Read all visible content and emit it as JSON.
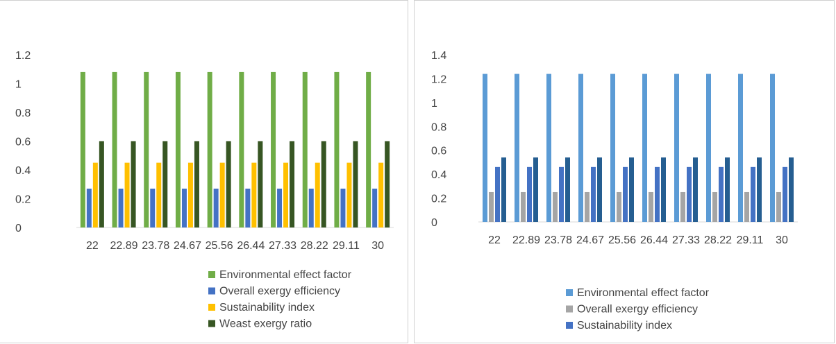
{
  "chart_data": [
    {
      "type": "bar",
      "categories": [
        "22",
        "22.89",
        "23.78",
        "24.67",
        "25.56",
        "26.44",
        "27.33",
        "28.22",
        "29.11",
        "30"
      ],
      "ylim": [
        0,
        1.2
      ],
      "yticks": [
        "0",
        "0.2",
        "0.4",
        "0.6",
        "0.8",
        "1",
        "1.2"
      ],
      "grid": false,
      "legend_position": "bottom",
      "series": [
        {
          "name": "Environmental effect factor",
          "color": "#70ad47",
          "values": [
            1.08,
            1.08,
            1.08,
            1.08,
            1.08,
            1.08,
            1.08,
            1.08,
            1.08,
            1.08
          ]
        },
        {
          "name": "Overall exergy efficiency",
          "color": "#4472c4",
          "values": [
            0.27,
            0.27,
            0.27,
            0.27,
            0.27,
            0.27,
            0.27,
            0.27,
            0.27,
            0.27
          ]
        },
        {
          "name": "Sustainability index",
          "color": "#ffc000",
          "values": [
            0.45,
            0.45,
            0.45,
            0.45,
            0.45,
            0.45,
            0.45,
            0.45,
            0.45,
            0.45
          ]
        },
        {
          "name": "Weast exergy ratio",
          "color": "#375623",
          "values": [
            0.6,
            0.6,
            0.6,
            0.6,
            0.6,
            0.6,
            0.6,
            0.6,
            0.6,
            0.6
          ]
        }
      ]
    },
    {
      "type": "bar",
      "categories": [
        "22",
        "22.89",
        "23.78",
        "24.67",
        "25.56",
        "26.44",
        "27.33",
        "28.22",
        "29.11",
        "30"
      ],
      "ylim": [
        0,
        1.4
      ],
      "yticks": [
        "0",
        "0.2",
        "0.4",
        "0.6",
        "0.8",
        "1",
        "1.2",
        "1.4"
      ],
      "grid": false,
      "legend_position": "bottom",
      "series": [
        {
          "name": "Environmental effect factor",
          "color": "#5b9bd5",
          "values": [
            1.24,
            1.24,
            1.24,
            1.24,
            1.24,
            1.24,
            1.24,
            1.24,
            1.24,
            1.24
          ]
        },
        {
          "name": "Overall exergy efficiency",
          "color": "#a5a5a5",
          "values": [
            0.25,
            0.25,
            0.25,
            0.25,
            0.25,
            0.25,
            0.25,
            0.25,
            0.25,
            0.25
          ]
        },
        {
          "name": "Sustainability index",
          "color": "#4472c4",
          "values": [
            0.46,
            0.46,
            0.46,
            0.46,
            0.46,
            0.46,
            0.46,
            0.46,
            0.46,
            0.46
          ]
        },
        {
          "name": "",
          "color": "#255e91",
          "values": [
            0.54,
            0.54,
            0.54,
            0.54,
            0.54,
            0.54,
            0.54,
            0.54,
            0.54,
            0.54
          ]
        }
      ]
    }
  ]
}
